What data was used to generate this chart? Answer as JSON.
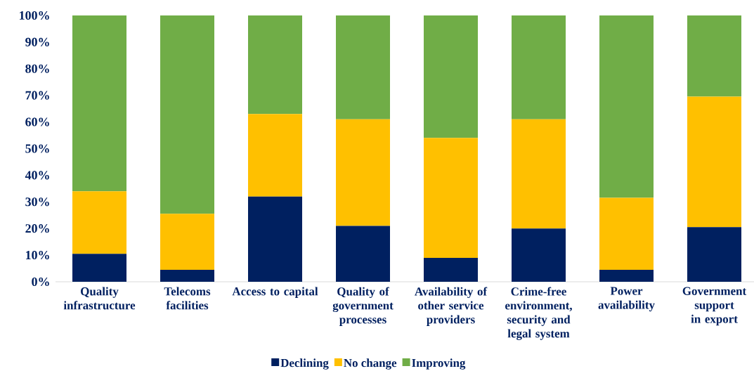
{
  "chart_data": {
    "type": "bar",
    "stacked": true,
    "legend": "bottom",
    "categories": [
      "Quality infrastructure",
      "Telecoms facilities",
      "Access to capital",
      "Quality of government processes",
      "Availability of other service providers",
      "Crime-free environment, security and legal system",
      "Power availability",
      "Government support in export"
    ],
    "series": [
      {
        "name": "Declining",
        "color": "#002060",
        "values": [
          10.5,
          4.5,
          32,
          21,
          9,
          20,
          4.5,
          20.5
        ]
      },
      {
        "name": "No change",
        "color": "#ffc000",
        "values": [
          23.5,
          21,
          31,
          40,
          45,
          41,
          27,
          49
        ]
      },
      {
        "name": "Improving",
        "color": "#70ad47",
        "values": [
          66,
          74.5,
          37,
          39,
          46,
          39,
          68.5,
          30.5
        ]
      }
    ],
    "ylim": [
      0,
      100
    ],
    "yticks": [
      {
        "value": 0,
        "label": "0%"
      },
      {
        "value": 10,
        "label": "10%"
      },
      {
        "value": 20,
        "label": "20%"
      },
      {
        "value": 30,
        "label": "30%"
      },
      {
        "value": 40,
        "label": "40%"
      },
      {
        "value": 50,
        "label": "50%"
      },
      {
        "value": 60,
        "label": "60%"
      },
      {
        "value": 70,
        "label": "70%"
      },
      {
        "value": 80,
        "label": "80%"
      },
      {
        "value": 90,
        "label": "90%"
      },
      {
        "value": 100,
        "label": "100%"
      }
    ]
  }
}
